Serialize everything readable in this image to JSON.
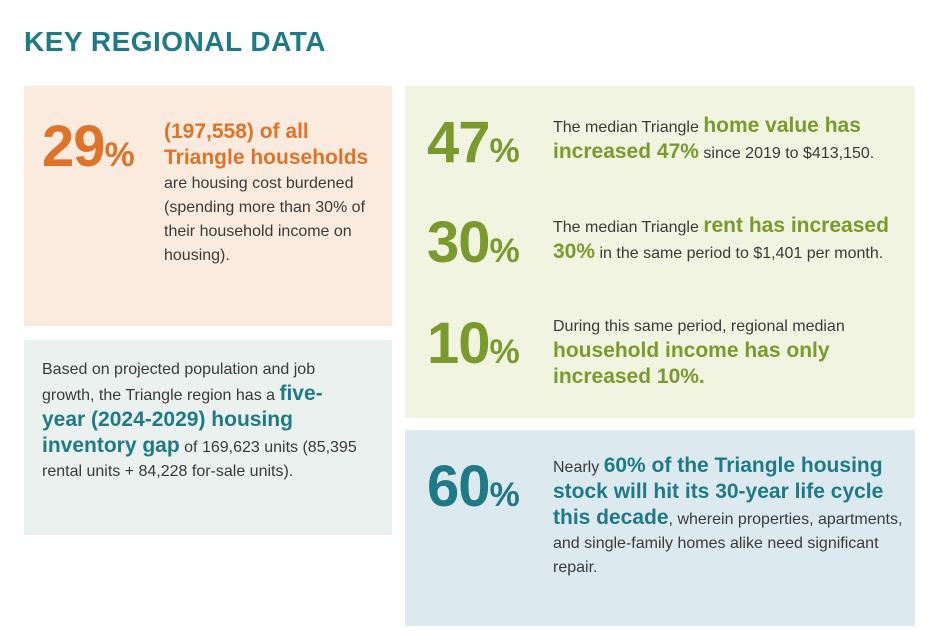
{
  "page": {
    "title": "KEY REGIONAL DATA",
    "colors": {
      "teal": "#1f7a86",
      "orange": "#e0732a",
      "olive": "#7a9a2e"
    }
  },
  "burden": {
    "num": "29",
    "pct": "%",
    "hl": "(197,558) of all Triangle households",
    "rest1": " are",
    "rest2": "housing cost burdened (spending more than 30% of their household income on housing)."
  },
  "gap": {
    "pre": "Based on projected population and job growth, the Triangle region has a ",
    "hl": "five-year (2024-2029) housing inventory gap",
    "post": " of 169,623 units (85,395 rental units + 84,228 for-sale units)."
  },
  "home_value": {
    "num": "47",
    "pct": "%",
    "pre": "The median Triangle ",
    "hl": "home value has increased 47%",
    "post": " since 2019 to $413,150."
  },
  "rent": {
    "num": "30",
    "pct": "%",
    "pre": "The median Triangle ",
    "hl": "rent has increased 30%",
    "post": " in the same period to $1,401 per month."
  },
  "income": {
    "num": "10",
    "pct": "%",
    "pre": "During this same period, regional median ",
    "hl": "household income has only increased 10%."
  },
  "stock": {
    "num": "60",
    "pct": "%",
    "pre": "Nearly ",
    "hl": "60% of the Triangle housing stock will hit its 30-year life cycle this decade",
    "post": ", wherein properties, apartments, and single-family homes alike need significant repair."
  }
}
